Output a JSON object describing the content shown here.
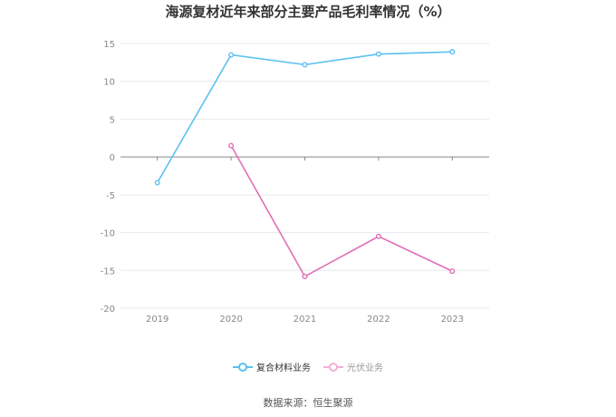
{
  "title": "海源复材近年来部分主要产品毛利率情况（%）",
  "source": "数据来源：恒生聚源",
  "legend": [
    {
      "label": "复合材料业务",
      "color": "#5bc0f0"
    },
    {
      "label": "光伏业务",
      "color": "#e06fb4"
    }
  ],
  "chart_data": {
    "type": "line",
    "title": "海源复材近年来部分主要产品毛利率情况（%）",
    "xlabel": "",
    "ylabel": "",
    "categories": [
      "2019",
      "2020",
      "2021",
      "2022",
      "2023"
    ],
    "ylim": [
      -20,
      15
    ],
    "yticks": [
      15,
      10,
      5,
      0,
      -5,
      -10,
      -15,
      -20
    ],
    "grid": true,
    "legend_position": "bottom",
    "series": [
      {
        "name": "复合材料业务",
        "color": "#5bc0f0",
        "values": [
          -3.4,
          13.5,
          12.2,
          13.6,
          13.9
        ]
      },
      {
        "name": "光伏业务",
        "color": "#e06fb4",
        "values": [
          null,
          1.5,
          -15.8,
          -10.5,
          -15.1
        ]
      }
    ],
    "annotations": [
      "数据来源：恒生聚源"
    ]
  }
}
